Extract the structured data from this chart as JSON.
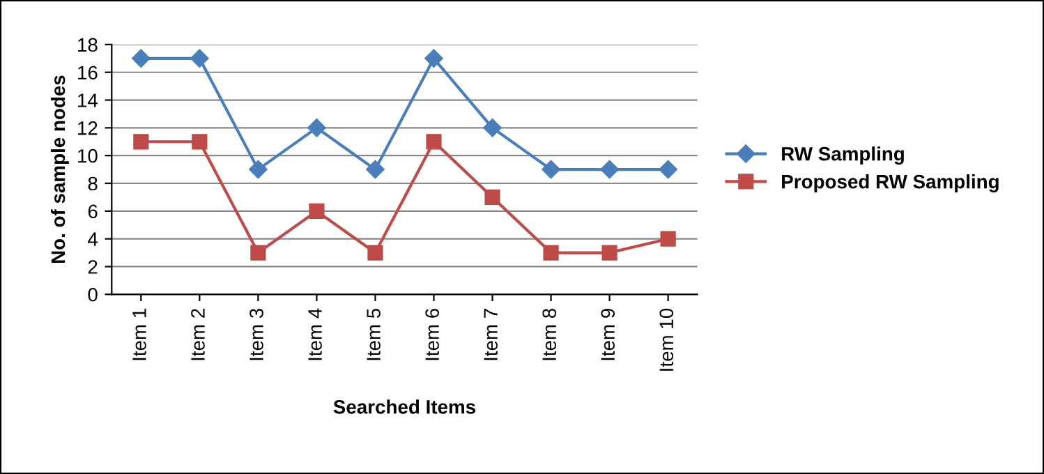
{
  "chart_data": {
    "type": "line",
    "xlabel": "Searched Items",
    "ylabel": "No. of sample nodes",
    "categories": [
      "Item 1",
      "Item 2",
      "Item 3",
      "Item 4",
      "Item 5",
      "Item 6",
      "Item 7",
      "Item 8",
      "Item 9",
      "Item 10"
    ],
    "series": [
      {
        "name": "RW Sampling",
        "color": "#4a7ebb",
        "marker": "diamond",
        "values": [
          17,
          17,
          9,
          12,
          9,
          17,
          12,
          9,
          9,
          9
        ]
      },
      {
        "name": "Proposed RW Sampling",
        "color": "#be4b48",
        "marker": "square",
        "values": [
          11,
          11,
          3,
          6,
          3,
          11,
          7,
          3,
          3,
          4
        ]
      }
    ],
    "ylim": [
      0,
      18
    ],
    "yticks": [
      0,
      2,
      4,
      6,
      8,
      10,
      12,
      14,
      16,
      18
    ],
    "grid": "y",
    "legend": "right",
    "line_style": "solid"
  }
}
